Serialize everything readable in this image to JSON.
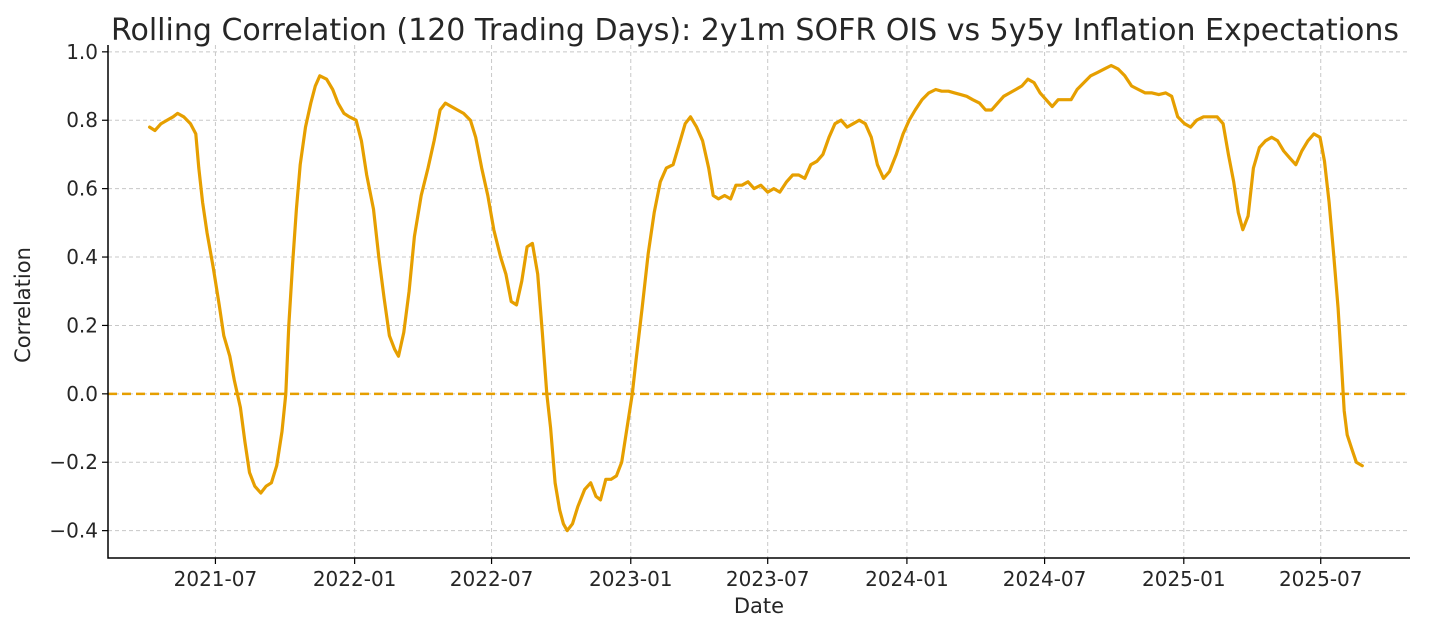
{
  "chart_data": {
    "type": "line",
    "title": "Rolling Correlation (120 Trading Days): 2y1m SOFR OIS vs 5y5y Inflation Expectations",
    "xlabel": "Date",
    "ylabel": "Correlation",
    "xlim": [
      "2021-02-09",
      "2025-10-27"
    ],
    "ylim": [
      -0.48,
      1.02
    ],
    "grid": true,
    "xticks": [
      {
        "value": "2021-07-01",
        "label": "2021-07"
      },
      {
        "value": "2022-01-01",
        "label": "2022-01"
      },
      {
        "value": "2022-07-01",
        "label": "2022-07"
      },
      {
        "value": "2023-01-01",
        "label": "2023-01"
      },
      {
        "value": "2023-07-01",
        "label": "2023-07"
      },
      {
        "value": "2024-01-01",
        "label": "2024-01"
      },
      {
        "value": "2024-07-01",
        "label": "2024-07"
      },
      {
        "value": "2025-01-01",
        "label": "2025-01"
      },
      {
        "value": "2025-07-01",
        "label": "2025-07"
      }
    ],
    "yticks": [
      {
        "value": 1.0,
        "label": "1.0"
      },
      {
        "value": 0.8,
        "label": "0.8"
      },
      {
        "value": 0.6,
        "label": "0.6"
      },
      {
        "value": 0.4,
        "label": "0.4"
      },
      {
        "value": 0.2,
        "label": "0.2"
      },
      {
        "value": 0.0,
        "label": "0.0"
      },
      {
        "value": -0.2,
        "label": "−0.2"
      },
      {
        "value": -0.4,
        "label": "−0.4"
      }
    ],
    "reference_line": {
      "y": 0.0,
      "style": "dashed",
      "color": "#e69f00"
    },
    "series": [
      {
        "color": "#e69f00",
        "points": [
          [
            "2021-04-05",
            0.78
          ],
          [
            "2021-04-12",
            0.77
          ],
          [
            "2021-04-20",
            0.79
          ],
          [
            "2021-04-28",
            0.8
          ],
          [
            "2021-05-06",
            0.81
          ],
          [
            "2021-05-12",
            0.82
          ],
          [
            "2021-05-20",
            0.81
          ],
          [
            "2021-05-29",
            0.79
          ],
          [
            "2021-06-05",
            0.76
          ],
          [
            "2021-06-09",
            0.66
          ],
          [
            "2021-06-14",
            0.56
          ],
          [
            "2021-06-20",
            0.47
          ],
          [
            "2021-06-28",
            0.37
          ],
          [
            "2021-07-06",
            0.26
          ],
          [
            "2021-07-12",
            0.17
          ],
          [
            "2021-07-20",
            0.11
          ],
          [
            "2021-07-26",
            0.04
          ],
          [
            "2021-08-03",
            -0.04
          ],
          [
            "2021-08-09",
            -0.14
          ],
          [
            "2021-08-15",
            -0.23
          ],
          [
            "2021-08-22",
            -0.27
          ],
          [
            "2021-08-30",
            -0.29
          ],
          [
            "2021-09-06",
            -0.27
          ],
          [
            "2021-09-13",
            -0.26
          ],
          [
            "2021-09-20",
            -0.21
          ],
          [
            "2021-09-27",
            -0.11
          ],
          [
            "2021-10-02",
            0.0
          ],
          [
            "2021-10-06",
            0.2
          ],
          [
            "2021-10-11",
            0.38
          ],
          [
            "2021-10-16",
            0.54
          ],
          [
            "2021-10-21",
            0.67
          ],
          [
            "2021-10-28",
            0.78
          ],
          [
            "2021-11-04",
            0.85
          ],
          [
            "2021-11-10",
            0.9
          ],
          [
            "2021-11-16",
            0.93
          ],
          [
            "2021-11-25",
            0.92
          ],
          [
            "2021-12-03",
            0.89
          ],
          [
            "2021-12-10",
            0.85
          ],
          [
            "2021-12-18",
            0.82
          ],
          [
            "2021-12-25",
            0.81
          ],
          [
            "2022-01-03",
            0.8
          ],
          [
            "2022-01-10",
            0.74
          ],
          [
            "2022-01-17",
            0.64
          ],
          [
            "2022-01-26",
            0.54
          ],
          [
            "2022-02-02",
            0.4
          ],
          [
            "2022-02-09",
            0.28
          ],
          [
            "2022-02-16",
            0.17
          ],
          [
            "2022-02-23",
            0.13
          ],
          [
            "2022-02-28",
            0.11
          ],
          [
            "2022-03-07",
            0.18
          ],
          [
            "2022-03-14",
            0.3
          ],
          [
            "2022-03-21",
            0.46
          ],
          [
            "2022-03-30",
            0.58
          ],
          [
            "2022-04-08",
            0.66
          ],
          [
            "2022-04-16",
            0.74
          ],
          [
            "2022-04-24",
            0.83
          ],
          [
            "2022-05-01",
            0.85
          ],
          [
            "2022-05-09",
            0.84
          ],
          [
            "2022-05-17",
            0.83
          ],
          [
            "2022-05-25",
            0.82
          ],
          [
            "2022-06-03",
            0.8
          ],
          [
            "2022-06-10",
            0.75
          ],
          [
            "2022-06-18",
            0.66
          ],
          [
            "2022-06-26",
            0.58
          ],
          [
            "2022-07-04",
            0.48
          ],
          [
            "2022-07-13",
            0.4
          ],
          [
            "2022-07-20",
            0.35
          ],
          [
            "2022-07-27",
            0.27
          ],
          [
            "2022-08-03",
            0.26
          ],
          [
            "2022-08-10",
            0.33
          ],
          [
            "2022-08-17",
            0.43
          ],
          [
            "2022-08-24",
            0.44
          ],
          [
            "2022-08-31",
            0.35
          ],
          [
            "2022-09-06",
            0.18
          ],
          [
            "2022-09-12",
            0.0
          ],
          [
            "2022-09-17",
            -0.1
          ],
          [
            "2022-09-23",
            -0.26
          ],
          [
            "2022-09-29",
            -0.34
          ],
          [
            "2022-10-04",
            -0.38
          ],
          [
            "2022-10-09",
            -0.4
          ],
          [
            "2022-10-16",
            -0.38
          ],
          [
            "2022-10-23",
            -0.33
          ],
          [
            "2022-11-01",
            -0.28
          ],
          [
            "2022-11-09",
            -0.26
          ],
          [
            "2022-11-16",
            -0.3
          ],
          [
            "2022-11-22",
            -0.31
          ],
          [
            "2022-11-29",
            -0.25
          ],
          [
            "2022-12-06",
            -0.25
          ],
          [
            "2022-12-13",
            -0.24
          ],
          [
            "2022-12-20",
            -0.2
          ],
          [
            "2022-12-27",
            -0.1
          ],
          [
            "2023-01-03",
            0.0
          ],
          [
            "2023-01-08",
            0.1
          ],
          [
            "2023-01-16",
            0.25
          ],
          [
            "2023-01-24",
            0.41
          ],
          [
            "2023-02-01",
            0.53
          ],
          [
            "2023-02-09",
            0.62
          ],
          [
            "2023-02-17",
            0.66
          ],
          [
            "2023-02-26",
            0.67
          ],
          [
            "2023-03-06",
            0.73
          ],
          [
            "2023-03-14",
            0.79
          ],
          [
            "2023-03-21",
            0.81
          ],
          [
            "2023-03-29",
            0.78
          ],
          [
            "2023-04-06",
            0.74
          ],
          [
            "2023-04-14",
            0.66
          ],
          [
            "2023-04-20",
            0.58
          ],
          [
            "2023-04-27",
            0.57
          ],
          [
            "2023-05-05",
            0.58
          ],
          [
            "2023-05-13",
            0.57
          ],
          [
            "2023-05-20",
            0.61
          ],
          [
            "2023-05-28",
            0.61
          ],
          [
            "2023-06-05",
            0.62
          ],
          [
            "2023-06-13",
            0.6
          ],
          [
            "2023-06-22",
            0.61
          ],
          [
            "2023-07-01",
            0.59
          ],
          [
            "2023-07-09",
            0.6
          ],
          [
            "2023-07-17",
            0.59
          ],
          [
            "2023-07-26",
            0.62
          ],
          [
            "2023-08-03",
            0.64
          ],
          [
            "2023-08-11",
            0.64
          ],
          [
            "2023-08-19",
            0.63
          ],
          [
            "2023-08-27",
            0.67
          ],
          [
            "2023-09-04",
            0.68
          ],
          [
            "2023-09-12",
            0.7
          ],
          [
            "2023-09-20",
            0.75
          ],
          [
            "2023-09-28",
            0.79
          ],
          [
            "2023-10-06",
            0.8
          ],
          [
            "2023-10-14",
            0.78
          ],
          [
            "2023-10-22",
            0.79
          ],
          [
            "2023-10-30",
            0.8
          ],
          [
            "2023-11-07",
            0.79
          ],
          [
            "2023-11-15",
            0.75
          ],
          [
            "2023-11-23",
            0.67
          ],
          [
            "2023-12-01",
            0.63
          ],
          [
            "2023-12-09",
            0.65
          ],
          [
            "2023-12-18",
            0.7
          ],
          [
            "2023-12-27",
            0.76
          ],
          [
            "2024-01-04",
            0.8
          ],
          [
            "2024-01-12",
            0.83
          ],
          [
            "2024-01-21",
            0.86
          ],
          [
            "2024-01-30",
            0.88
          ],
          [
            "2024-02-08",
            0.89
          ],
          [
            "2024-02-16",
            0.885
          ],
          [
            "2024-02-25",
            0.885
          ],
          [
            "2024-03-04",
            0.88
          ],
          [
            "2024-03-12",
            0.875
          ],
          [
            "2024-03-20",
            0.87
          ],
          [
            "2024-03-28",
            0.86
          ],
          [
            "2024-04-06",
            0.85
          ],
          [
            "2024-04-14",
            0.83
          ],
          [
            "2024-04-22",
            0.83
          ],
          [
            "2024-04-30",
            0.85
          ],
          [
            "2024-05-08",
            0.87
          ],
          [
            "2024-05-16",
            0.88
          ],
          [
            "2024-05-24",
            0.89
          ],
          [
            "2024-06-01",
            0.9
          ],
          [
            "2024-06-09",
            0.92
          ],
          [
            "2024-06-17",
            0.91
          ],
          [
            "2024-06-25",
            0.88
          ],
          [
            "2024-07-03",
            0.86
          ],
          [
            "2024-07-11",
            0.84
          ],
          [
            "2024-07-19",
            0.86
          ],
          [
            "2024-07-28",
            0.86
          ],
          [
            "2024-08-05",
            0.86
          ],
          [
            "2024-08-13",
            0.89
          ],
          [
            "2024-08-22",
            0.91
          ],
          [
            "2024-08-31",
            0.93
          ],
          [
            "2024-09-09",
            0.94
          ],
          [
            "2024-09-18",
            0.95
          ],
          [
            "2024-09-27",
            0.96
          ],
          [
            "2024-10-06",
            0.95
          ],
          [
            "2024-10-15",
            0.93
          ],
          [
            "2024-10-24",
            0.9
          ],
          [
            "2024-11-02",
            0.89
          ],
          [
            "2024-11-11",
            0.88
          ],
          [
            "2024-11-20",
            0.88
          ],
          [
            "2024-11-29",
            0.875
          ],
          [
            "2024-12-08",
            0.88
          ],
          [
            "2024-12-16",
            0.87
          ],
          [
            "2024-12-24",
            0.81
          ],
          [
            "2025-01-02",
            0.79
          ],
          [
            "2025-01-10",
            0.78
          ],
          [
            "2025-01-18",
            0.8
          ],
          [
            "2025-01-27",
            0.81
          ],
          [
            "2025-02-05",
            0.81
          ],
          [
            "2025-02-14",
            0.81
          ],
          [
            "2025-02-22",
            0.79
          ],
          [
            "2025-03-01",
            0.7
          ],
          [
            "2025-03-08",
            0.62
          ],
          [
            "2025-03-14",
            0.53
          ],
          [
            "2025-03-20",
            0.48
          ],
          [
            "2025-03-27",
            0.52
          ],
          [
            "2025-04-03",
            0.66
          ],
          [
            "2025-04-11",
            0.72
          ],
          [
            "2025-04-19",
            0.74
          ],
          [
            "2025-04-27",
            0.75
          ],
          [
            "2025-05-05",
            0.74
          ],
          [
            "2025-05-13",
            0.71
          ],
          [
            "2025-05-21",
            0.69
          ],
          [
            "2025-05-29",
            0.67
          ],
          [
            "2025-06-06",
            0.71
          ],
          [
            "2025-06-14",
            0.74
          ],
          [
            "2025-06-22",
            0.76
          ],
          [
            "2025-06-30",
            0.75
          ],
          [
            "2025-07-06",
            0.68
          ],
          [
            "2025-07-12",
            0.56
          ],
          [
            "2025-07-18",
            0.41
          ],
          [
            "2025-07-24",
            0.25
          ],
          [
            "2025-07-28",
            0.1
          ],
          [
            "2025-08-01",
            -0.05
          ],
          [
            "2025-08-05",
            -0.12
          ],
          [
            "2025-08-11",
            -0.16
          ],
          [
            "2025-08-17",
            -0.2
          ],
          [
            "2025-08-25",
            -0.21
          ]
        ]
      }
    ]
  }
}
